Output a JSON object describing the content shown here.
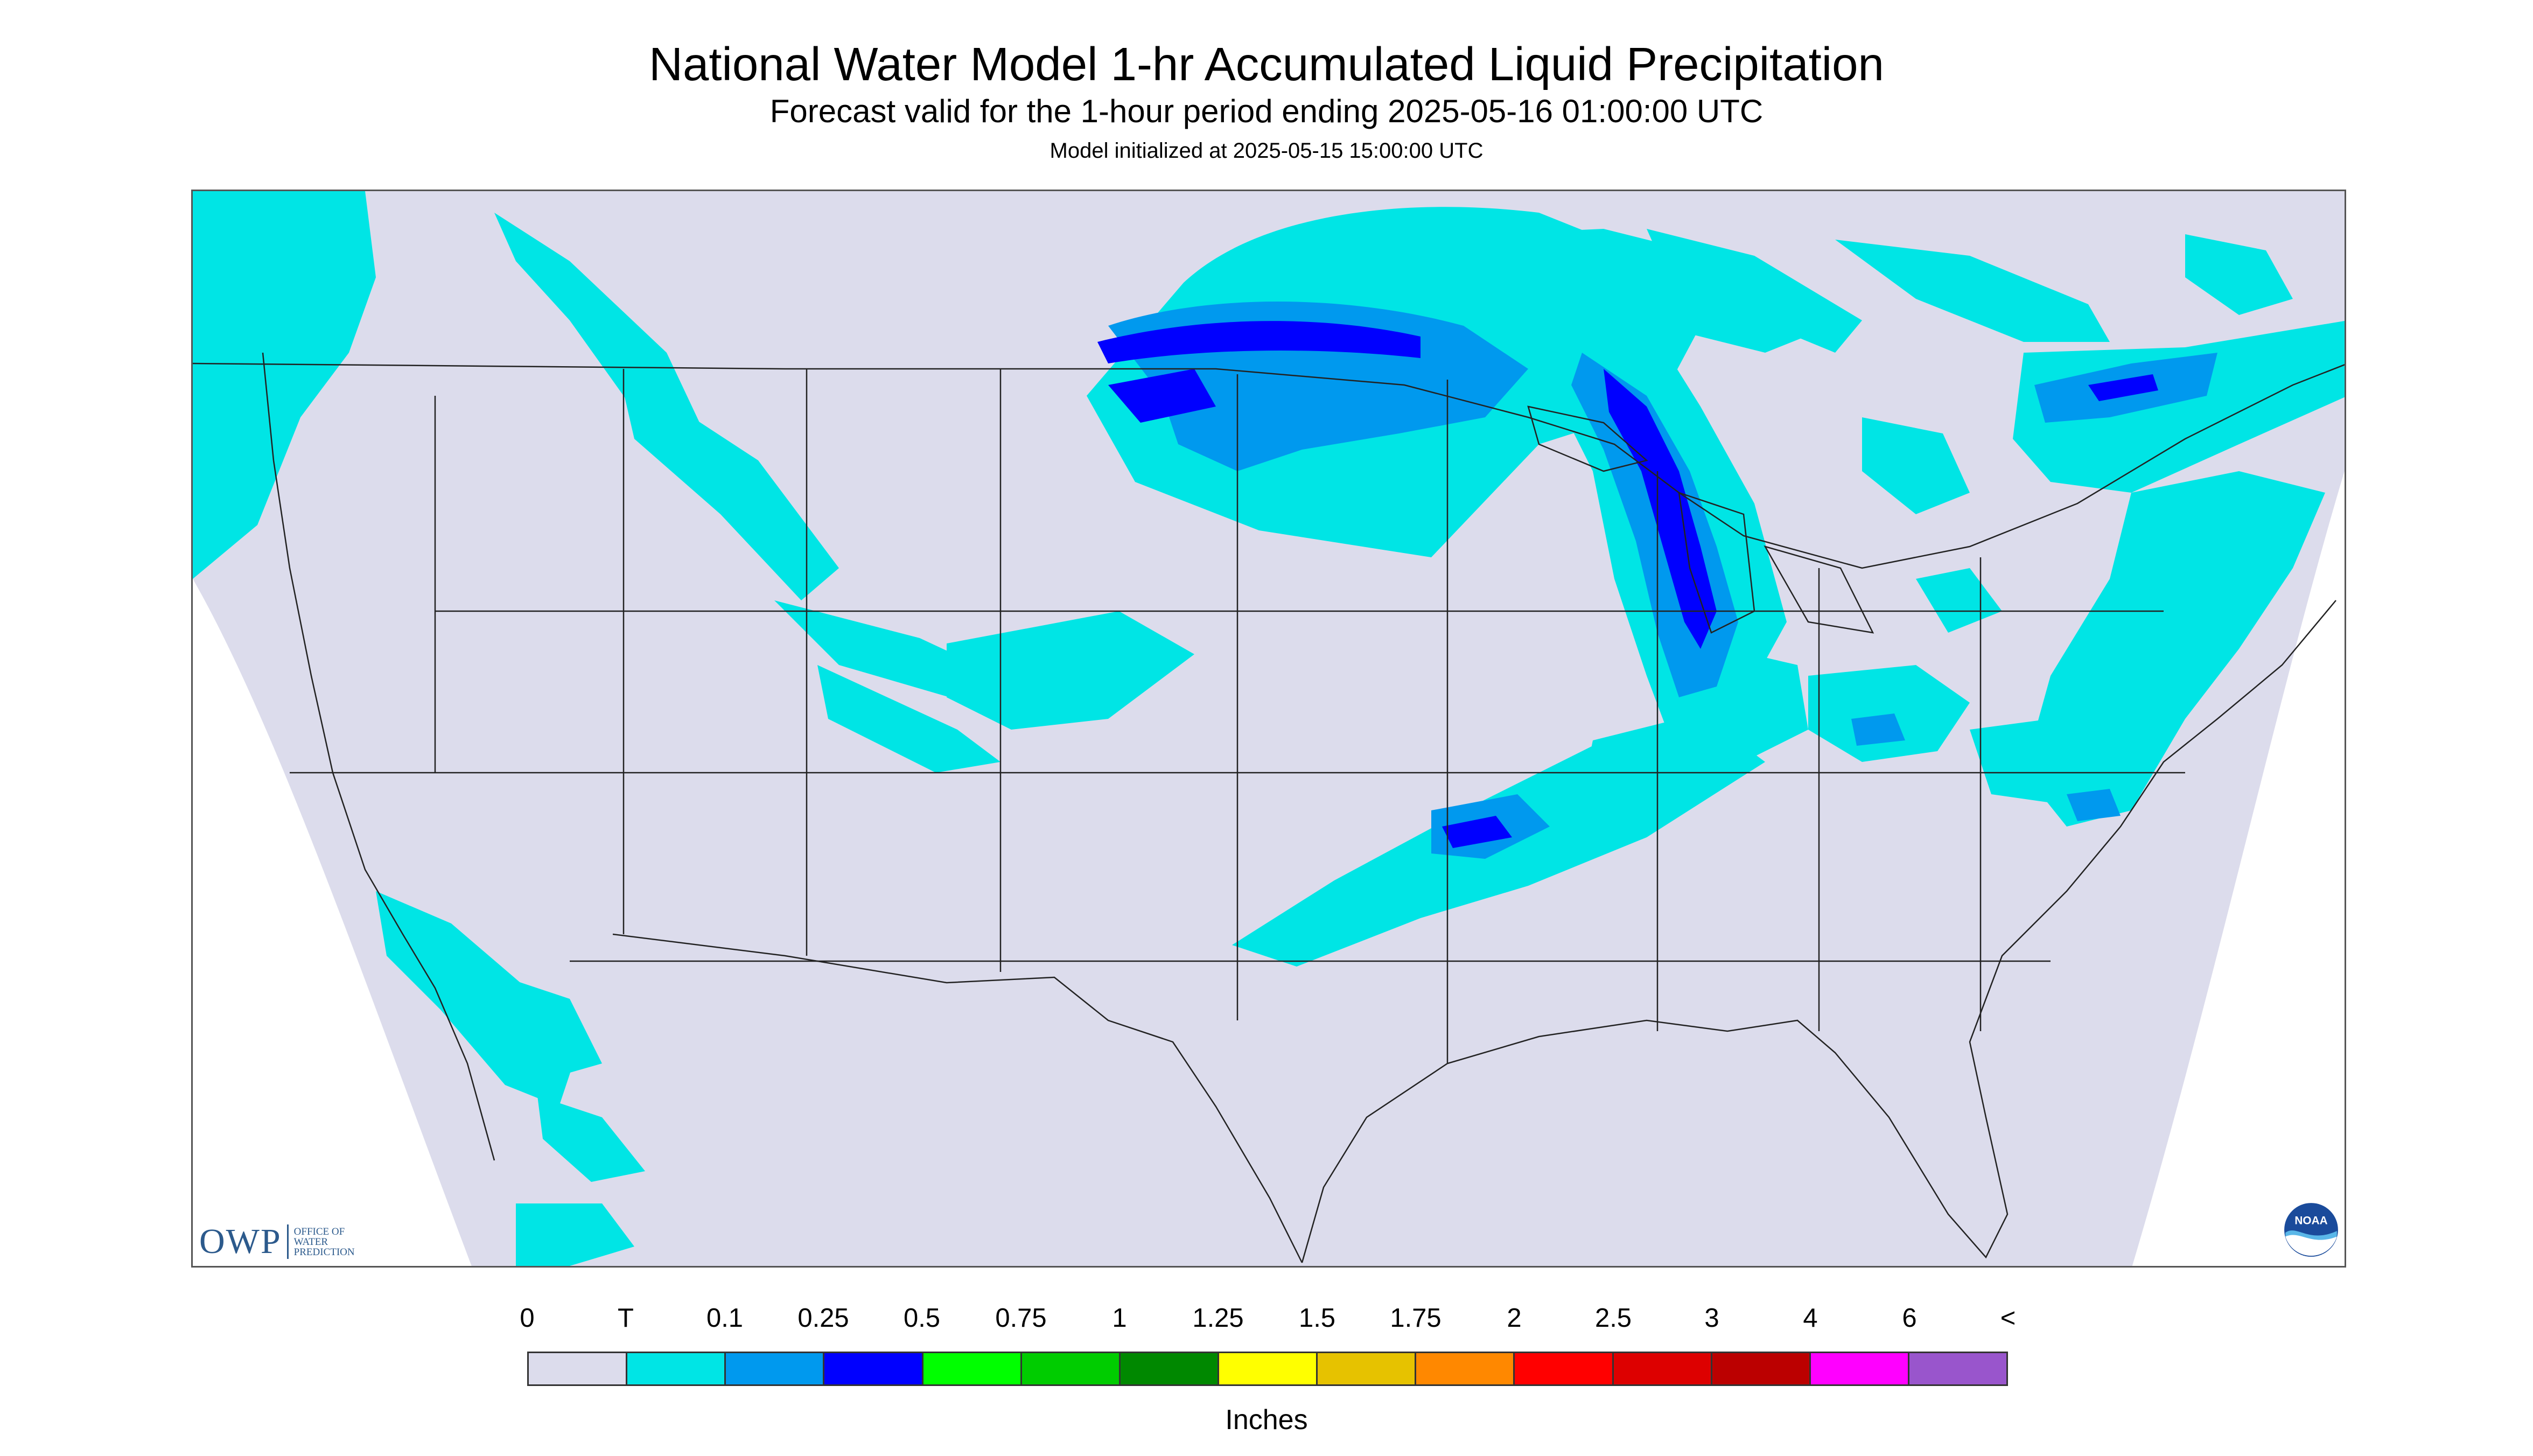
{
  "header": {
    "title": "National Water Model 1-hr Accumulated Liquid Precipitation",
    "subtitle": "Forecast valid for the 1-hour period ending 2025-05-16 01:00:00 UTC",
    "init": "Model initialized at 2025-05-15 15:00:00 UTC"
  },
  "map": {
    "background_color": "#dcdcec",
    "light_rain_color": "#00e5e5",
    "moderate_rain_color": "#0099ee",
    "heavy_rain_color": "#0000ff"
  },
  "logos": {
    "owp_big": "OWP",
    "owp_small": [
      "OFFICE OF",
      "WATER",
      "PREDICTION"
    ],
    "noaa": "NOAA"
  },
  "legend": {
    "labels": [
      "0",
      "T",
      "0.1",
      "0.25",
      "0.5",
      "0.75",
      "1",
      "1.25",
      "1.5",
      "1.75",
      "2",
      "2.5",
      "3",
      "4",
      "6",
      "<"
    ],
    "colors": [
      "#dcdcec",
      "#00e5e5",
      "#0099ee",
      "#0000ff",
      "#00ff00",
      "#00cc00",
      "#008800",
      "#ffff00",
      "#e6c200",
      "#ff8800",
      "#ff0000",
      "#dd0000",
      "#bb0000",
      "#ff00ff",
      "#9955cc"
    ],
    "units": "Inches"
  }
}
